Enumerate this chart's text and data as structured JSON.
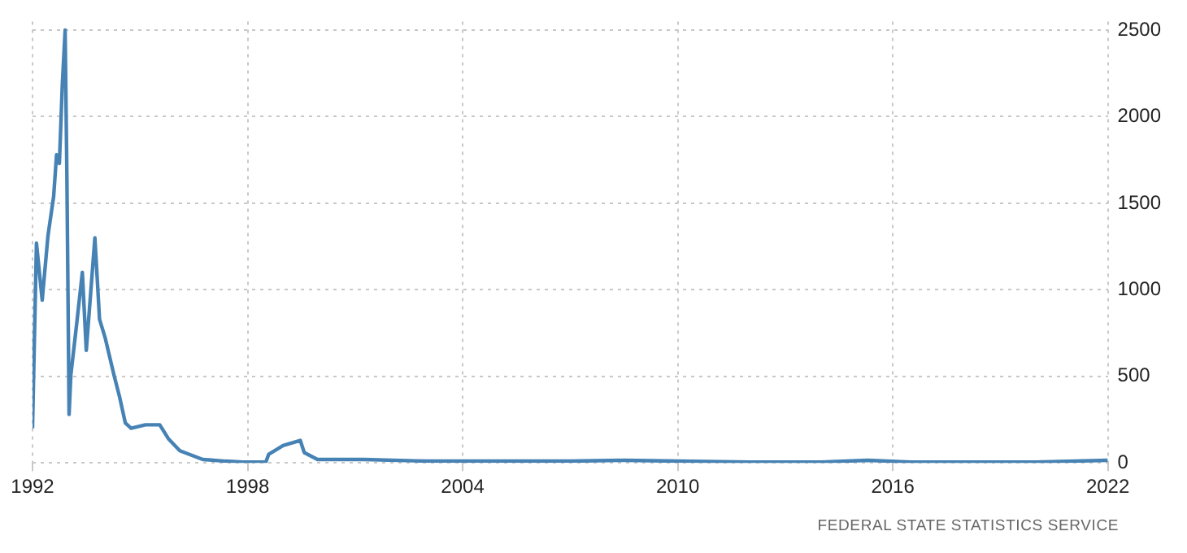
{
  "chart_data": {
    "type": "line",
    "x": [
      1992.0,
      1992.11,
      1992.27,
      1992.43,
      1992.59,
      1992.67,
      1992.75,
      1992.83,
      1992.91,
      1992.96,
      1993.02,
      1993.07,
      1993.23,
      1993.39,
      1993.5,
      1993.74,
      1993.87,
      1994.03,
      1994.27,
      1994.43,
      1994.59,
      1994.75,
      1995.15,
      1995.55,
      1995.79,
      1996.11,
      1996.75,
      1997.39,
      1997.87,
      1998.51,
      1998.59,
      1998.99,
      1999.47,
      1999.58,
      1999.95,
      2001.23,
      2003,
      2005,
      2007,
      2008.5,
      2010,
      2012,
      2014,
      2015.3,
      2016.5,
      2018,
      2020,
      2022
    ],
    "series": [
      {
        "color": "#4682b4",
        "values": [
          200,
          1270,
          940,
          1310,
          1540,
          1780,
          1730,
          2180,
          2500,
          1640,
          280,
          510,
          800,
          1100,
          650,
          1300,
          830,
          720,
          510,
          380,
          230,
          200,
          220,
          220,
          140,
          70,
          20,
          10,
          5,
          5,
          50,
          100,
          130,
          60,
          20,
          20,
          10,
          10,
          10,
          15,
          10,
          5,
          5,
          15,
          5,
          5,
          5,
          15
        ]
      }
    ],
    "xlim": [
      1992,
      2022
    ],
    "xticks": [
      1992,
      1998,
      2004,
      2010,
      2016,
      2022
    ],
    "ylim": [
      0,
      2550
    ],
    "yticks": [
      0,
      500,
      1000,
      1500,
      2000,
      2500
    ],
    "grid": true,
    "legend": false,
    "marker": "none",
    "line_style": "solid",
    "annotations": [
      "FEDERAL STATE STATISTICS SERVICE"
    ]
  }
}
